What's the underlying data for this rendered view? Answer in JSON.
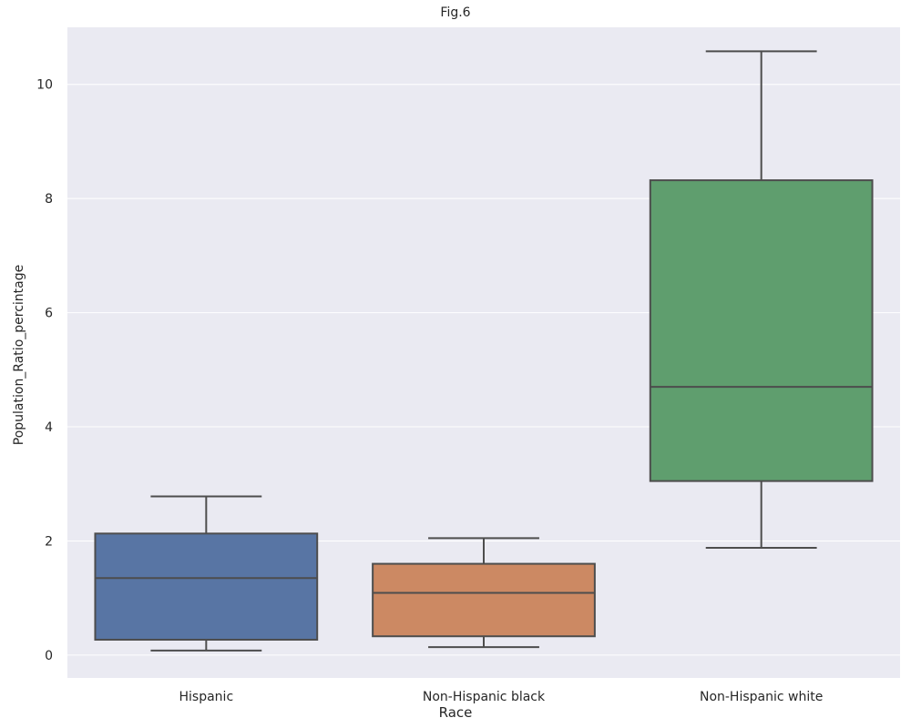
{
  "chart_data": {
    "type": "box",
    "title": "Fig.6",
    "xlabel": "Race",
    "ylabel": "Population_Ratio_percintage",
    "ylim": [
      -0.4,
      11.0
    ],
    "yticks": [
      0,
      2,
      4,
      6,
      8,
      10
    ],
    "grid": true,
    "legend": "none",
    "categories": [
      "Hispanic",
      "Non-Hispanic black",
      "Non-Hispanic white"
    ],
    "boxes": [
      {
        "category": "Hispanic",
        "whisker_low": 0.08,
        "q1": 0.27,
        "median": 1.35,
        "q3": 2.13,
        "whisker_high": 2.78,
        "color": "#5875a4"
      },
      {
        "category": "Non-Hispanic black",
        "whisker_low": 0.14,
        "q1": 0.33,
        "median": 1.09,
        "q3": 1.6,
        "whisker_high": 2.05,
        "color": "#cc8963"
      },
      {
        "category": "Non-Hispanic white",
        "whisker_low": 1.88,
        "q1": 3.05,
        "median": 4.7,
        "q3": 8.32,
        "whisker_high": 10.58,
        "color": "#5f9e6e"
      }
    ]
  },
  "colors": {
    "plot_background": "#eaeaf2",
    "grid": "#ffffff",
    "box_line": "#4d4d4d",
    "text": "#262626"
  }
}
